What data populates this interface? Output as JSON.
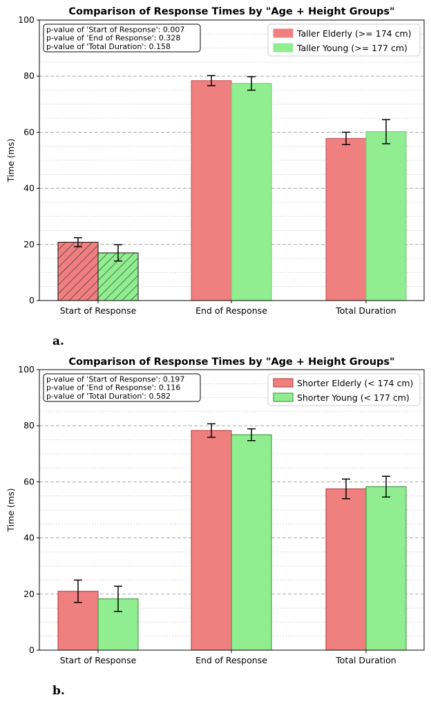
{
  "chart_data": [
    {
      "type": "bar",
      "title": "Comparison of Response Times by \"Age + Height Groups\"",
      "xlabel": "",
      "ylabel": "Time (ms)",
      "ylim": [
        0,
        100
      ],
      "yticks": [
        0,
        20,
        40,
        60,
        80,
        100
      ],
      "categories": [
        "Start of Response",
        "End of Response",
        "Total Duration"
      ],
      "series": [
        {
          "name": "Taller Elderly (>= 174 cm)",
          "color": "#f08080",
          "edge": "#c05050",
          "values": [
            20.8,
            78.4,
            57.8
          ],
          "errors": [
            1.6,
            1.8,
            2.2
          ]
        },
        {
          "name": "Taller Young (>= 177 cm)",
          "color": "#90ee90",
          "edge": "#6cc46c",
          "values": [
            17.0,
            77.4,
            60.2
          ],
          "errors": [
            2.9,
            2.4,
            4.3
          ]
        }
      ],
      "hatched_category": "Start of Response",
      "stats_box": [
        "p-value of 'Start of Response': 0.007",
        "p-value of 'End of Response': 0.328",
        "p-value of 'Total Duration': 0.158"
      ],
      "panel_label": "a.",
      "grid": "y-major-dashed-and-minor-dotted",
      "legend_position": "top-right"
    },
    {
      "type": "bar",
      "title": "Comparison of Response Times by \"Age + Height Groups\"",
      "xlabel": "",
      "ylabel": "Time (ms)",
      "ylim": [
        0,
        100
      ],
      "yticks": [
        0,
        20,
        40,
        60,
        80,
        100
      ],
      "categories": [
        "Start of Response",
        "End of Response",
        "Total Duration"
      ],
      "series": [
        {
          "name": "Shorter Elderly (< 174 cm)",
          "color": "#f08080",
          "edge": "#b03030",
          "values": [
            21.0,
            78.3,
            57.5
          ],
          "errors": [
            4.0,
            2.4,
            3.5
          ]
        },
        {
          "name": "Shorter Young (< 177 cm)",
          "color": "#90ee90",
          "edge": "#2e8b2e",
          "values": [
            18.3,
            76.8,
            58.3
          ],
          "errors": [
            4.5,
            2.1,
            3.7
          ]
        }
      ],
      "hatched_category": "",
      "stats_box": [
        "p-value of 'Start of Response': 0.197",
        "p-value of 'End of Response': 0.116",
        "p-value of 'Total Duration': 0.582"
      ],
      "panel_label": "b.",
      "grid": "y-major-dashed-and-minor-dotted",
      "legend_position": "top-right"
    }
  ]
}
